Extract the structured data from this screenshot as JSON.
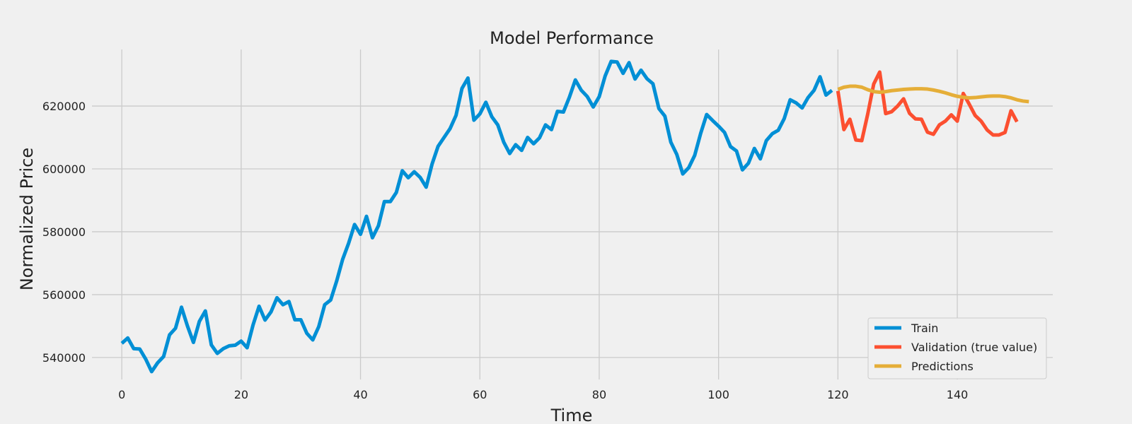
{
  "chart_data": {
    "type": "line",
    "title": "Model Performance",
    "xlabel": "Time",
    "ylabel": "Normalized Price",
    "xlim": [
      -5,
      156
    ],
    "ylim": [
      533000,
      638000
    ],
    "xticks": [
      0,
      20,
      40,
      60,
      80,
      100,
      120,
      140
    ],
    "yticks": [
      540000,
      560000,
      580000,
      600000,
      620000
    ],
    "xtick_labels": [
      "0",
      "20",
      "40",
      "60",
      "80",
      "100",
      "120",
      "140"
    ],
    "ytick_labels": [
      "540000",
      "560000",
      "580000",
      "600000",
      "620000"
    ],
    "grid": true,
    "legend_position": "lower-right",
    "series": [
      {
        "name": "Train",
        "color": "#008fd5",
        "x_start": 0,
        "values": [
          544500,
          546200,
          542800,
          542700,
          539500,
          535500,
          538300,
          540300,
          547200,
          549300,
          556000,
          550000,
          544800,
          551500,
          554800,
          544000,
          541300,
          542800,
          543700,
          543900,
          545200,
          543100,
          550400,
          556300,
          551900,
          554500,
          559000,
          556800,
          557800,
          552000,
          552000,
          547700,
          545600,
          549800,
          556800,
          558300,
          564300,
          571200,
          576300,
          582300,
          579200,
          584900,
          578100,
          581900,
          589600,
          589600,
          592500,
          599400,
          597200,
          599100,
          597300,
          594200,
          601600,
          607200,
          610000,
          612800,
          617000,
          625600,
          628900,
          615500,
          617500,
          621200,
          616600,
          614000,
          608500,
          604900,
          607700,
          605900,
          610000,
          608000,
          609900,
          614000,
          612500,
          618300,
          618100,
          622800,
          628300,
          625000,
          623000,
          619700,
          623000,
          629600,
          634200,
          634000,
          630400,
          633800,
          628600,
          631400,
          628700,
          627100,
          619200,
          616800,
          608500,
          604600,
          598400,
          600400,
          604300,
          611300,
          617300,
          615400,
          613600,
          611600,
          607100,
          605700,
          599700,
          601800,
          606500,
          603200,
          609000,
          611200,
          612300,
          616000,
          622000,
          621000,
          619400,
          622700,
          625000,
          629300,
          623500,
          625000
        ]
      },
      {
        "name": "Validation (true value)",
        "color": "#fc4f30",
        "x_start": 120,
        "values": [
          624800,
          612500,
          615800,
          609200,
          609000,
          617500,
          627000,
          630800,
          617600,
          618200,
          620000,
          622300,
          617700,
          615900,
          615800,
          611700,
          611000,
          614000,
          615200,
          617200,
          615200,
          624000,
          620600,
          617000,
          615200,
          612400,
          610800,
          610800,
          611600,
          618500,
          615000
        ]
      },
      {
        "name": "Predictions",
        "color": "#e5ae38",
        "x_start": 120,
        "values": [
          625300,
          626000,
          626300,
          626300,
          626000,
          625200,
          624600,
          624400,
          624600,
          624900,
          625100,
          625300,
          625400,
          625500,
          625500,
          625400,
          625100,
          624700,
          624200,
          623600,
          623100,
          622800,
          622600,
          622700,
          622900,
          623100,
          623200,
          623200,
          623000,
          622600,
          622000,
          621600,
          621400
        ]
      }
    ]
  }
}
